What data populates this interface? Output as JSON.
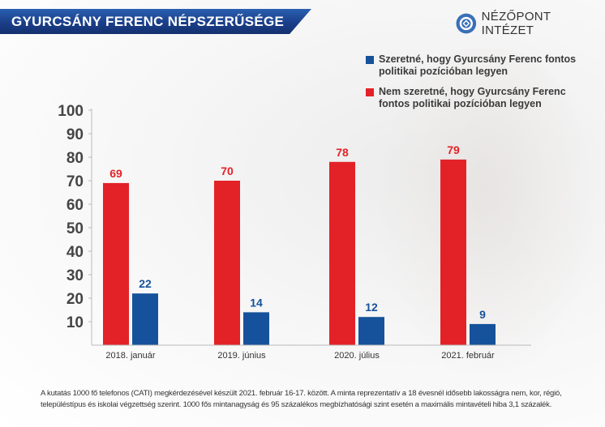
{
  "header": {
    "title": "GYURCSÁNY FERENC NÉPSZERŰSÉGE",
    "brand": "NÉZŐPONT INTÉZET",
    "brand_icon": "nezopont-logo-icon"
  },
  "colors": {
    "banner": "#1b3f8a",
    "red": "#e32227",
    "blue": "#16529b"
  },
  "chart_data": {
    "type": "bar",
    "title": "GYURCSÁNY FERENC NÉPSZERŰSÉGE",
    "xlabel": "",
    "ylabel": "",
    "ylim": [
      0,
      100
    ],
    "yticks": [
      10,
      20,
      30,
      40,
      50,
      60,
      70,
      80,
      90,
      100
    ],
    "grid": false,
    "legend_position": "top-right",
    "categories": [
      "2018. január",
      "2019. június",
      "2020. július",
      "2021. február"
    ],
    "series": [
      {
        "name": "Nem szeretné, hogy Gyurcsány Ferenc fontos politikai pozícióban legyen",
        "color": "#e32227",
        "values": [
          69,
          70,
          78,
          79
        ]
      },
      {
        "name": "Szeretné, hogy Gyurcsány Ferenc fontos politikai pozícióban legyen",
        "color": "#16529b",
        "values": [
          22,
          14,
          12,
          9
        ]
      }
    ]
  },
  "legend": [
    {
      "label": "Szeretné, hogy Gyurcsány Ferenc fontos politikai pozícióban legyen",
      "color": "#16529b"
    },
    {
      "label": "Nem szeretné, hogy Gyurcsány Ferenc fontos politikai pozícióban legyen",
      "color": "#e32227"
    }
  ],
  "footnote": "A kutatás 1000 fő telefonos (CATI) megkérdezésével készült 2021. február 16-17. között. A minta reprezentatív a 18 évesnél idősebb lakosságra nem, kor, régió, településtípus és iskolai végzettség szerint. 1000 fős mintanagyság és 95 százalékos megbízhatósági szint esetén a maximális mintavételi hiba 3,1 százalék."
}
